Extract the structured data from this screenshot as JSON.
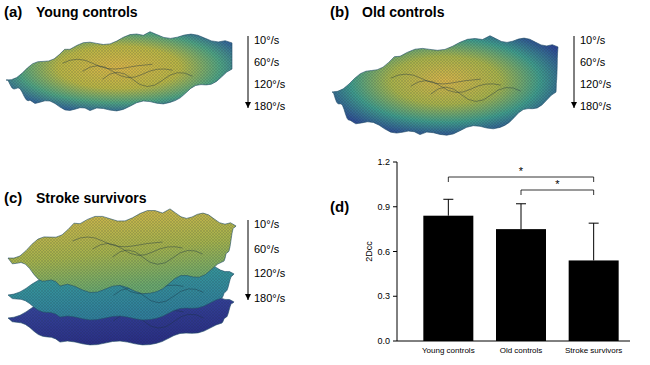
{
  "panels": [
    {
      "letter": "(a)",
      "title": "Young controls",
      "speeds": [
        "10°/s",
        "60°/s",
        "120°/s",
        "180°/s"
      ]
    },
    {
      "letter": "(b)",
      "title": "Old controls",
      "speeds": [
        "10°/s",
        "60°/s",
        "120°/s",
        "180°/s"
      ]
    },
    {
      "letter": "(c)",
      "title": "Stroke survivors",
      "speeds": [
        "10°/s",
        "60°/s",
        "120°/s",
        "180°/s"
      ]
    }
  ],
  "chart_data": {
    "type": "bar",
    "title": "(d)",
    "y_label": "2Dcc",
    "categories": [
      "Young controls",
      "Old controls",
      "Stroke survivors"
    ],
    "values": [
      0.84,
      0.75,
      0.54
    ],
    "errors": [
      0.11,
      0.17,
      0.25
    ],
    "color": "#000000",
    "ylim": [
      0,
      1.2
    ],
    "yticks": [
      {
        "value": 0,
        "label": "0.0"
      },
      0.3,
      0.6,
      0.9,
      1.2
    ],
    "annotations": [
      {
        "from": 0,
        "to": 2,
        "text": "*"
      },
      {
        "from": 1,
        "to": 2,
        "text": "*"
      }
    ]
  }
}
